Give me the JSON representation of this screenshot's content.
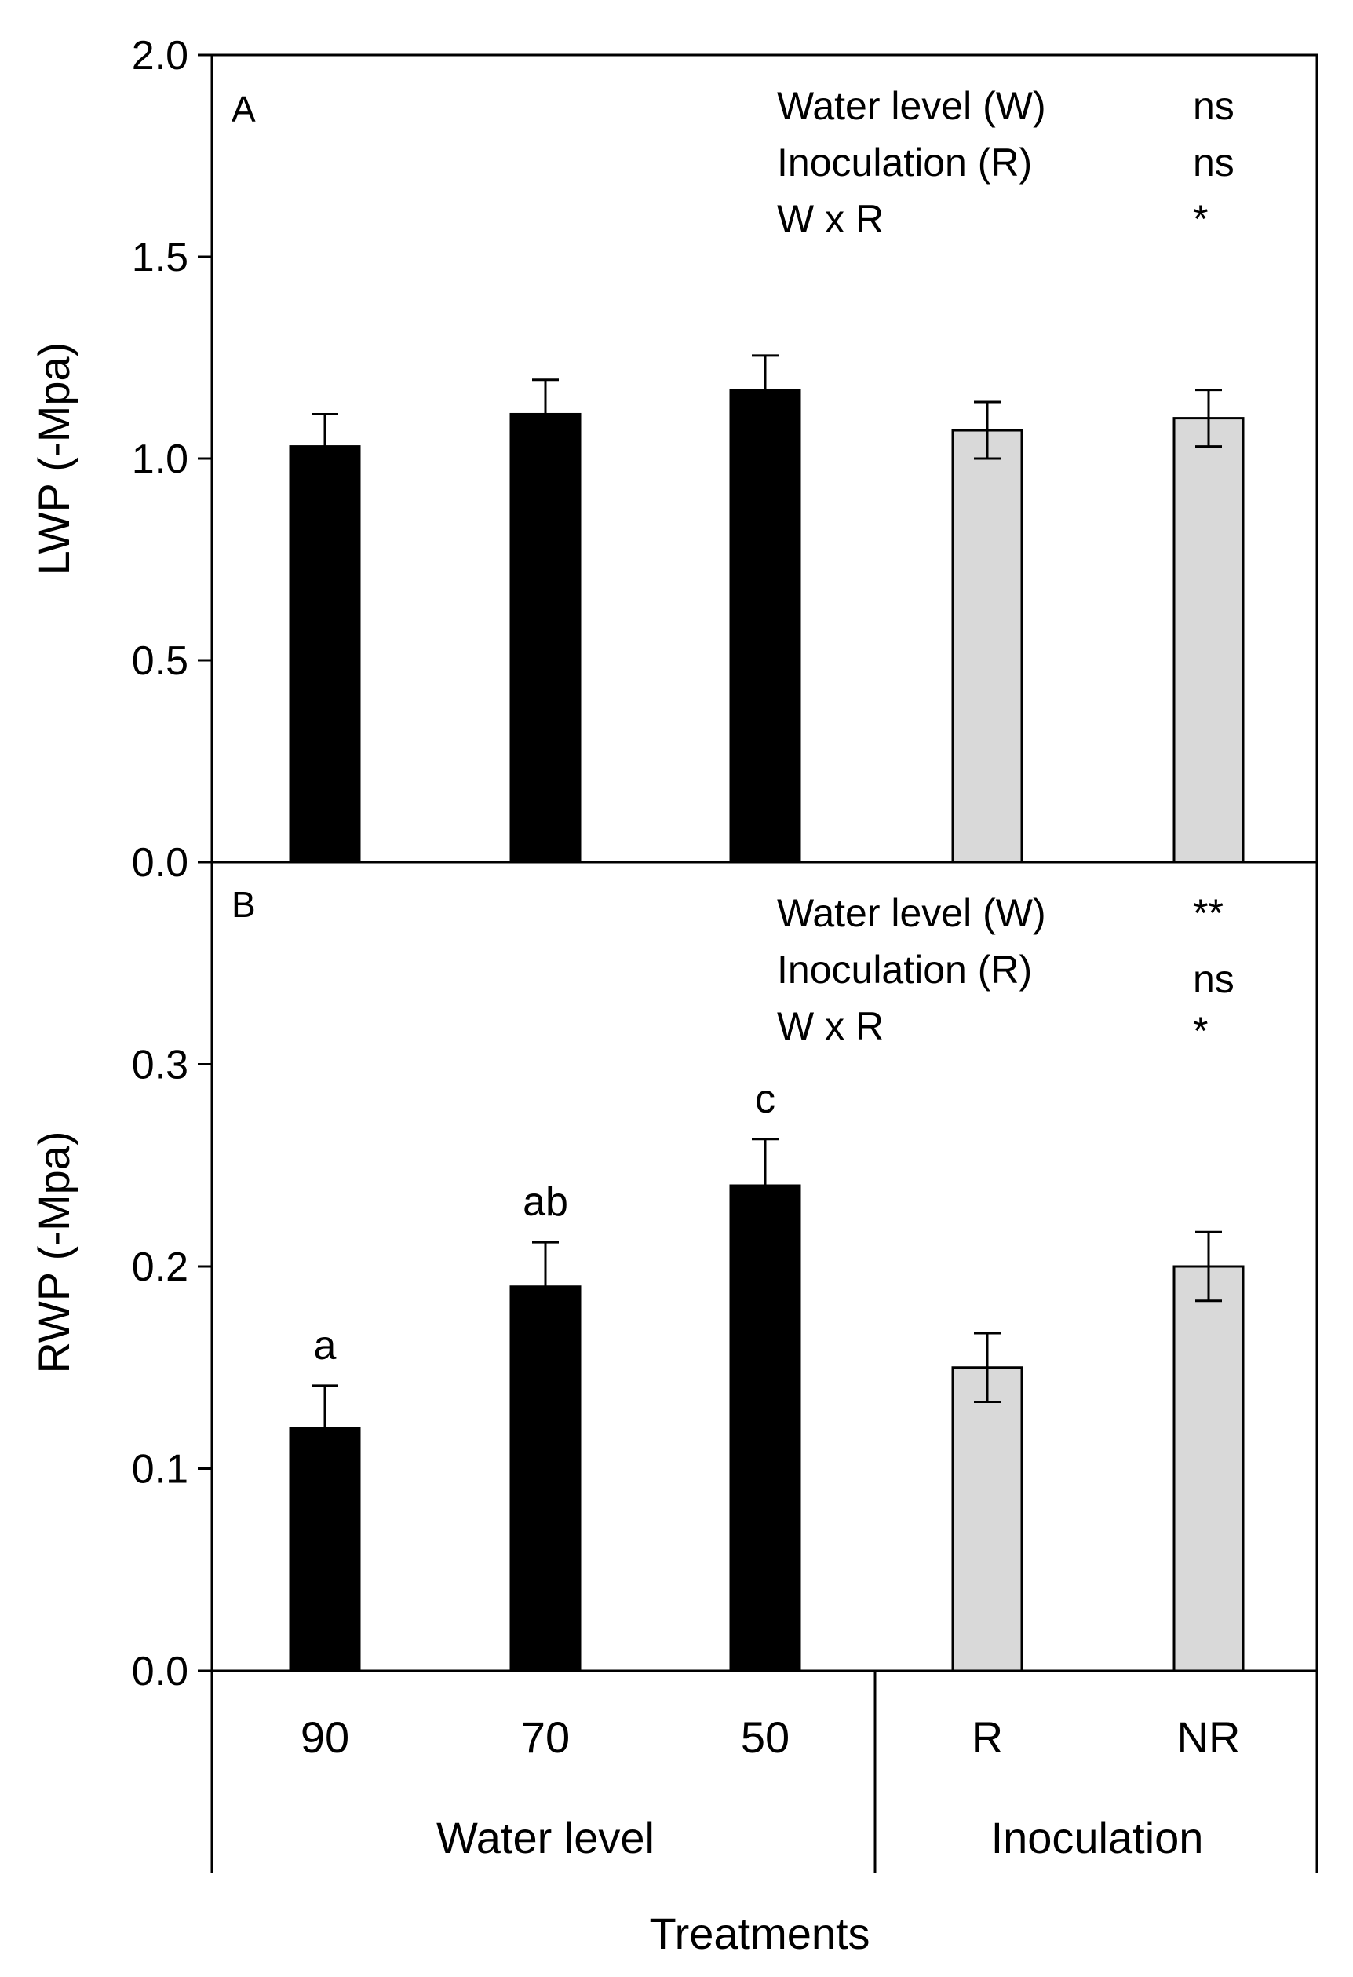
{
  "chart_data": [
    {
      "panel_label": "A",
      "type": "bar",
      "ylabel": "LWP (-Mpa)",
      "ylim": [
        0,
        2.0
      ],
      "yticks": [
        "0.0",
        "0.5",
        "1.0",
        "1.5",
        "2.0"
      ],
      "yticks_values": [
        0,
        0.5,
        1.0,
        1.5,
        2.0
      ],
      "categories": [
        "90",
        "70",
        "50",
        "R",
        "NR"
      ],
      "values": [
        1.03,
        1.11,
        1.17,
        1.07,
        1.1
      ],
      "errors": [
        0.08,
        0.085,
        0.085,
        0.07,
        0.07
      ],
      "bar_colors": [
        "#000000",
        "#000000",
        "#000000",
        "#d9d9d9",
        "#d9d9d9"
      ],
      "significance_letters": [
        "",
        "",
        "",
        "",
        ""
      ],
      "stats": [
        {
          "term": "Water level (W)",
          "sig": "ns"
        },
        {
          "term": "Inoculation (R)",
          "sig": "ns"
        },
        {
          "term": "W x R",
          "sig": "*"
        }
      ]
    },
    {
      "panel_label": "B",
      "type": "bar",
      "ylabel": "RWP (-Mpa)",
      "ylim": [
        0,
        0.4
      ],
      "yticks": [
        "0.0",
        "0.1",
        "0.2",
        "0.3"
      ],
      "yticks_values": [
        0,
        0.1,
        0.2,
        0.3
      ],
      "categories": [
        "90",
        "70",
        "50",
        "R",
        "NR"
      ],
      "values": [
        0.12,
        0.19,
        0.24,
        0.15,
        0.2
      ],
      "errors": [
        0.021,
        0.022,
        0.023,
        0.017,
        0.017
      ],
      "bar_colors": [
        "#000000",
        "#000000",
        "#000000",
        "#d9d9d9",
        "#d9d9d9"
      ],
      "significance_letters": [
        "a",
        "ab",
        "c",
        "",
        ""
      ],
      "stats": [
        {
          "term": "Water level (W)",
          "sig": "**"
        },
        {
          "term": "Inoculation (R)",
          "sig": "ns"
        },
        {
          "term": "W x R",
          "sig": "*"
        }
      ]
    }
  ],
  "x_axis": {
    "category_labels": [
      "90",
      "70",
      "50",
      "R",
      "NR"
    ],
    "groups": [
      {
        "label": "Water level",
        "categories": [
          "90",
          "70",
          "50"
        ]
      },
      {
        "label": "Inoculation",
        "categories": [
          "R",
          "NR"
        ]
      }
    ],
    "title": "Treatments"
  }
}
